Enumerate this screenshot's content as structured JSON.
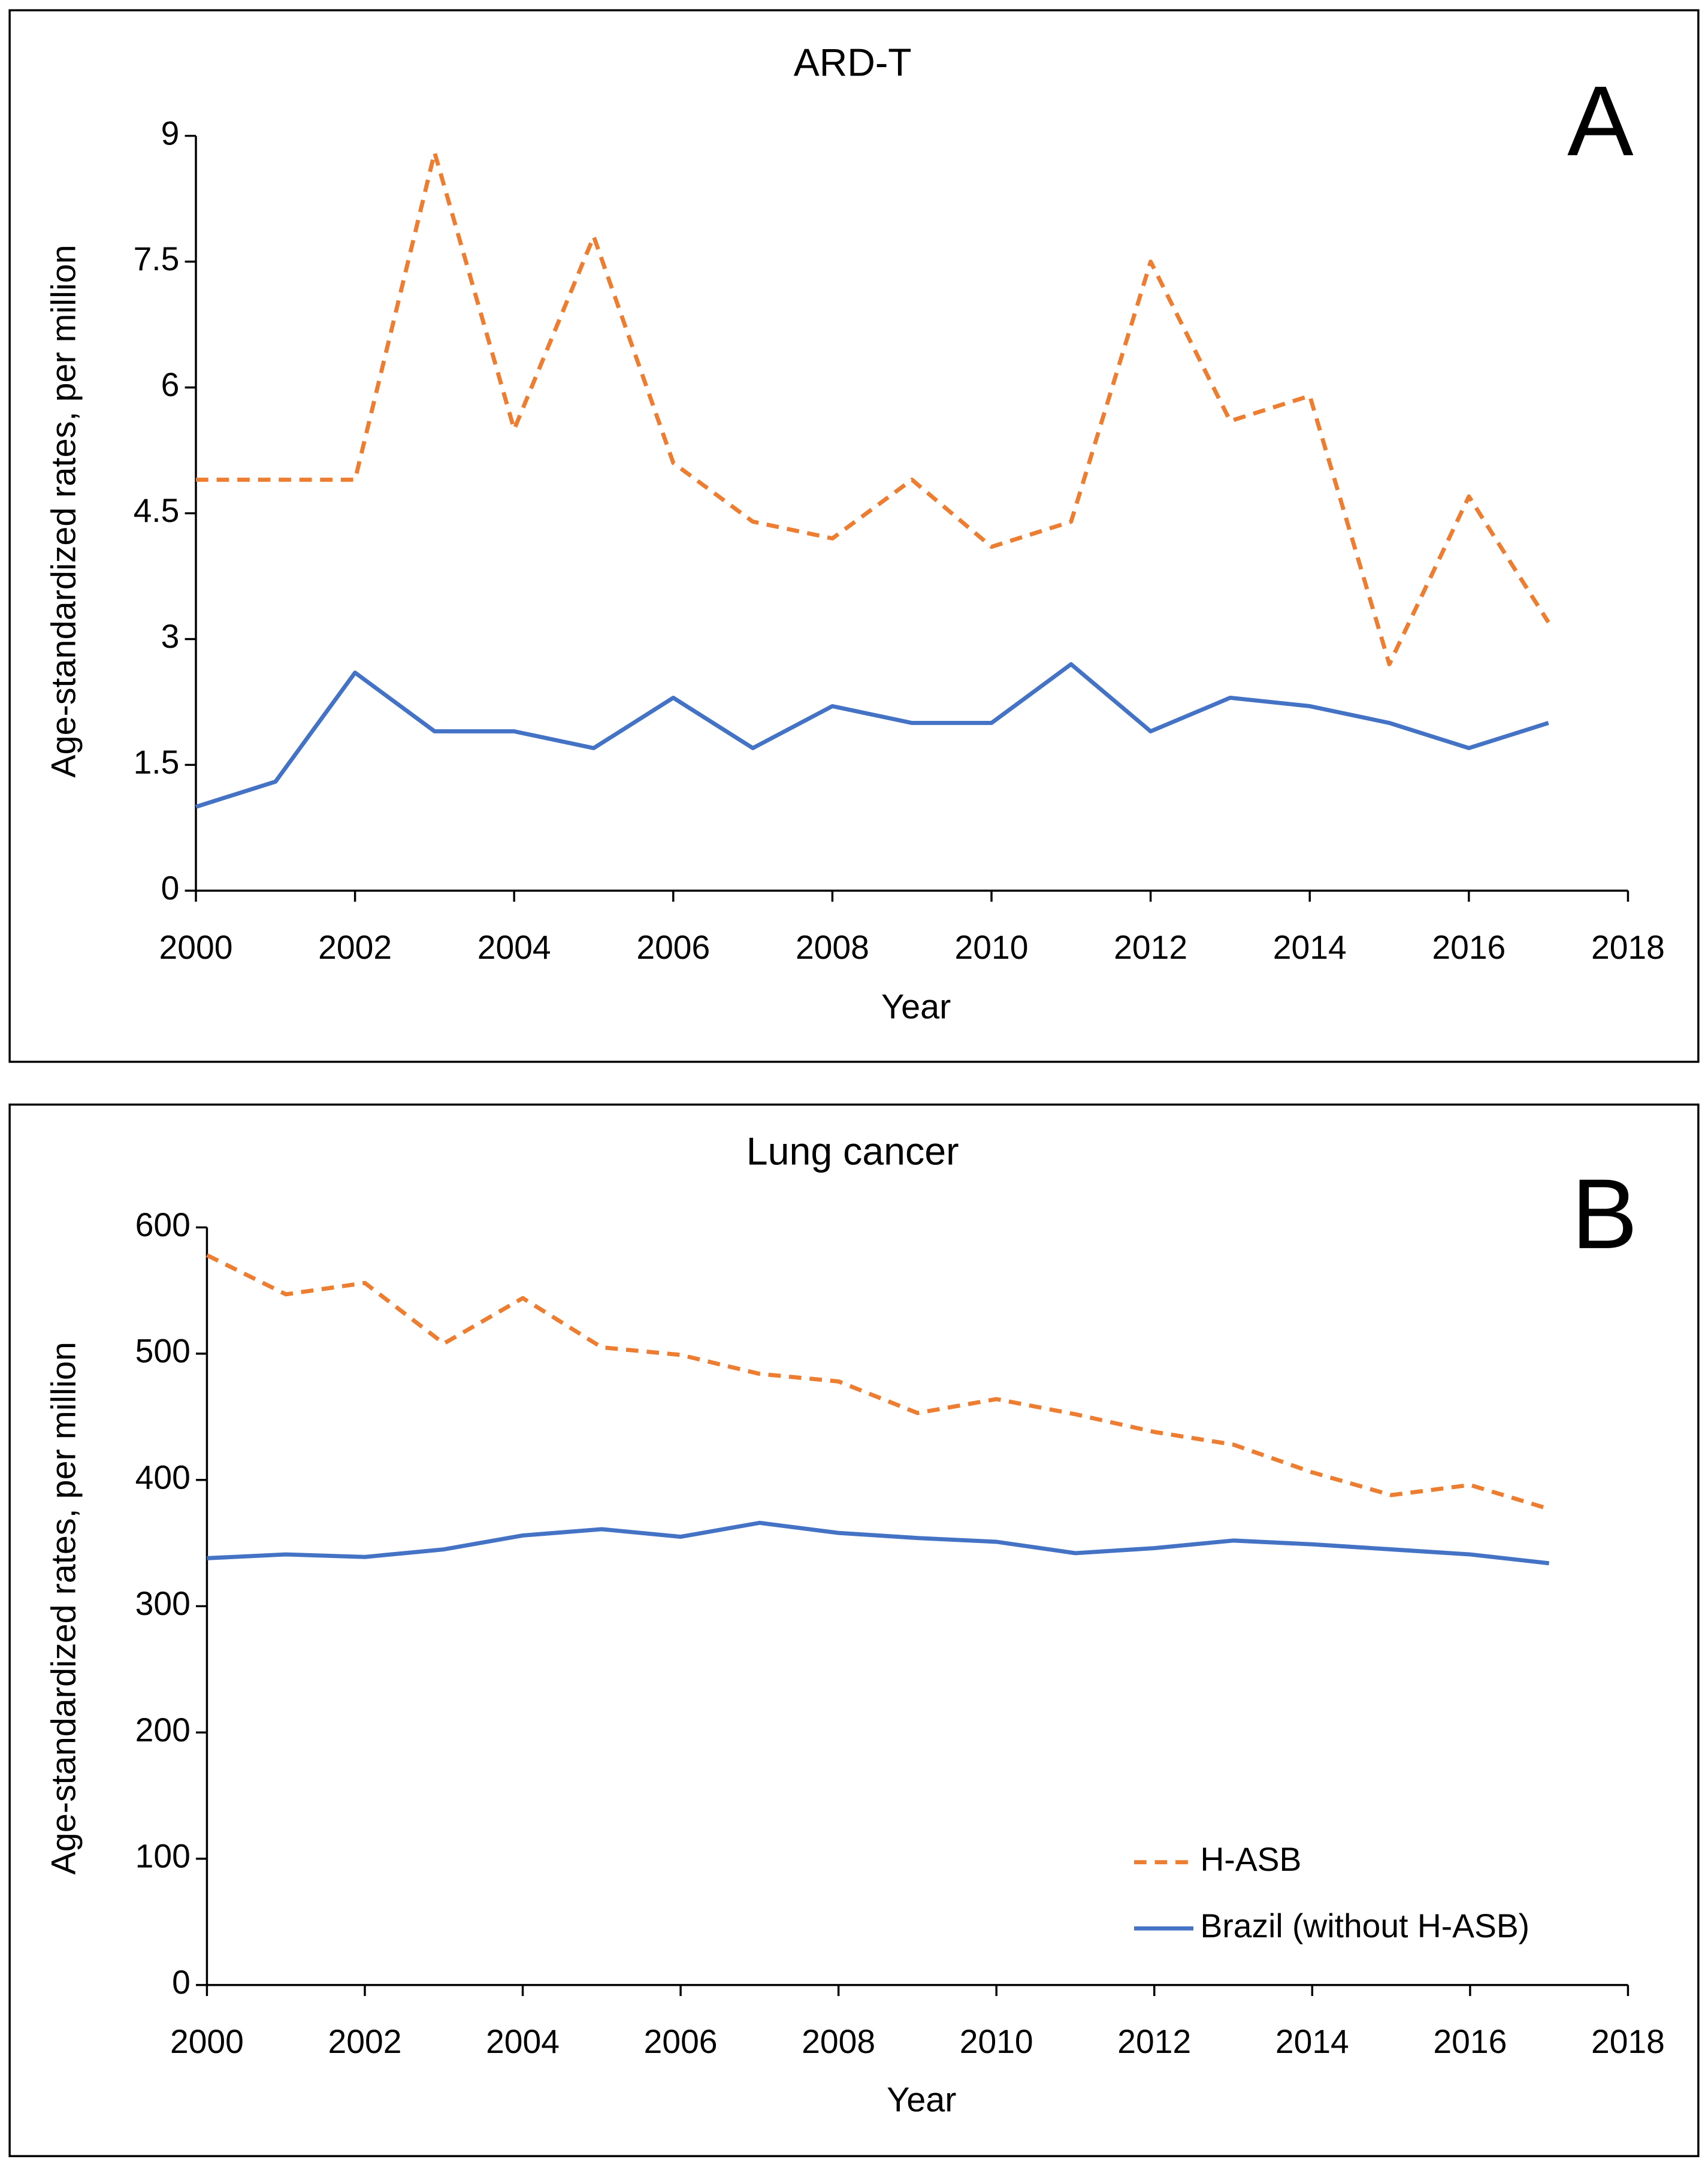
{
  "chart_data": [
    {
      "type": "line",
      "title": "ARD-T",
      "panel_label": "A",
      "x_label": "Year",
      "y_label": "Age-standardized rates, per million",
      "x": [
        2000,
        2001,
        2002,
        2003,
        2004,
        2005,
        2006,
        2007,
        2008,
        2009,
        2010,
        2011,
        2012,
        2013,
        2014,
        2015,
        2016,
        2017
      ],
      "series": [
        {
          "name": "H-ASB",
          "color": "#ED7D31",
          "linestyle": "dashed",
          "values": [
            4.9,
            4.9,
            4.9,
            8.8,
            5.5,
            7.8,
            5.1,
            4.4,
            4.2,
            4.9,
            4.1,
            4.4,
            7.5,
            5.6,
            5.9,
            2.7,
            4.7,
            3.2
          ]
        },
        {
          "name": "Brazil (without H-ASB)",
          "color": "#4472C4",
          "linestyle": "solid",
          "values": [
            1.0,
            1.3,
            2.6,
            1.9,
            1.9,
            1.7,
            2.3,
            1.7,
            2.2,
            2.0,
            2.0,
            2.7,
            1.9,
            2.3,
            2.2,
            2.0,
            1.7,
            2.0
          ]
        }
      ],
      "xlim": [
        2000,
        2018
      ],
      "xticks": [
        2000,
        2002,
        2004,
        2006,
        2008,
        2010,
        2012,
        2014,
        2016,
        2018
      ],
      "ylim": [
        0,
        9
      ],
      "yticks": [
        0,
        1.5,
        3,
        4.5,
        6,
        7.5,
        9
      ],
      "legend": false
    },
    {
      "type": "line",
      "title": "Lung cancer",
      "panel_label": "B",
      "x_label": "Year",
      "y_label": "Age-standardized rates, per million",
      "x": [
        2000,
        2001,
        2002,
        2003,
        2004,
        2005,
        2006,
        2007,
        2008,
        2009,
        2010,
        2011,
        2012,
        2013,
        2014,
        2015,
        2016,
        2017
      ],
      "series": [
        {
          "name": "H-ASB",
          "color": "#ED7D31",
          "linestyle": "dashed",
          "values": [
            578,
            547,
            556,
            508,
            544,
            505,
            499,
            484,
            478,
            453,
            464,
            452,
            438,
            428,
            406,
            388,
            396,
            377
          ]
        },
        {
          "name": "Brazil (without H-ASB)",
          "color": "#4472C4",
          "linestyle": "solid",
          "values": [
            338,
            341,
            339,
            345,
            356,
            361,
            355,
            366,
            358,
            354,
            351,
            342,
            346,
            352,
            349,
            345,
            341,
            334
          ]
        }
      ],
      "xlim": [
        2000,
        2018
      ],
      "xticks": [
        2000,
        2002,
        2004,
        2006,
        2008,
        2010,
        2012,
        2014,
        2016,
        2018
      ],
      "ylim": [
        0,
        600
      ],
      "yticks": [
        0,
        100,
        200,
        300,
        400,
        500,
        600
      ],
      "legend": "lower right"
    }
  ]
}
